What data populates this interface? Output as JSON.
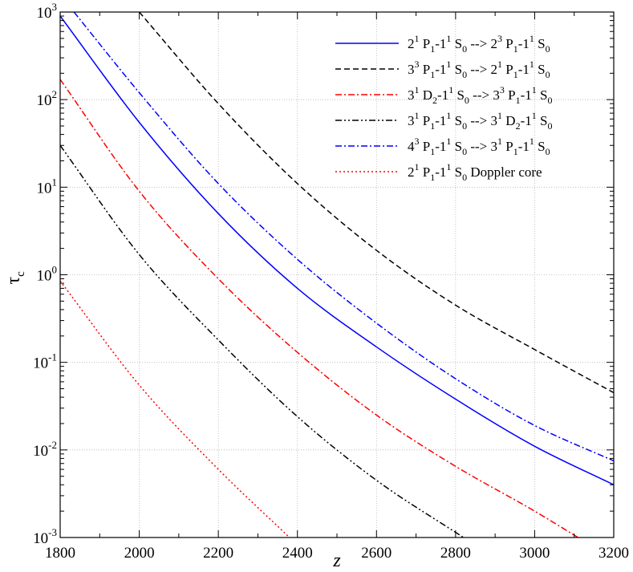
{
  "chart_data": {
    "type": "line",
    "title": "",
    "xlabel": "z",
    "ylabel": "τ_c",
    "xlim": [
      1800,
      3200
    ],
    "ylim": [
      0.001,
      1000
    ],
    "yscale": "log",
    "grid": true,
    "legend_position": "top-right",
    "x_ticks": [
      1800,
      2000,
      2200,
      2400,
      2600,
      2800,
      3000,
      3200
    ],
    "x_tick_labels": [
      "1800",
      "2000",
      "2200",
      "2400",
      "2600",
      "2800",
      "3000",
      "3200"
    ],
    "y_ticks": [
      {
        "value": 1000,
        "mant": "10",
        "exp": "3"
      },
      {
        "value": 100,
        "mant": "10",
        "exp": "2"
      },
      {
        "value": 10,
        "mant": "10",
        "exp": "1"
      },
      {
        "value": 1,
        "mant": "10",
        "exp": "0"
      },
      {
        "value": 0.1,
        "mant": "10",
        "exp": "-1"
      },
      {
        "value": 0.01,
        "mant": "10",
        "exp": "-2"
      },
      {
        "value": 0.001,
        "mant": "10",
        "exp": "-3"
      }
    ],
    "series": [
      {
        "name": "2¹P₁-1¹S₀ --> 2³P₁-1¹S₀",
        "legend_parts": [
          [
            "2",
            "n"
          ],
          [
            "1",
            "sup"
          ],
          [
            " P",
            "n"
          ],
          [
            "1",
            "sub"
          ],
          [
            "-1",
            "n"
          ],
          [
            "1",
            "sup"
          ],
          [
            " S",
            "n"
          ],
          [
            "0",
            "sub"
          ],
          [
            " --> 2",
            "n"
          ],
          [
            "3",
            "sup"
          ],
          [
            " P",
            "n"
          ],
          [
            "1",
            "sub"
          ],
          [
            "-1",
            "n"
          ],
          [
            "1",
            "sup"
          ],
          [
            " S",
            "n"
          ],
          [
            "0",
            "sub"
          ]
        ],
        "color": "#0000ff",
        "dash": "",
        "x": [
          1800,
          2000,
          2200,
          2400,
          2600,
          2800,
          3000,
          3200
        ],
        "y": [
          900,
          55,
          5,
          0.7,
          0.15,
          0.038,
          0.011,
          0.004
        ]
      },
      {
        "name": "3³P₁-1¹S₀ --> 2¹P₁-1¹S₀",
        "legend_parts": [
          [
            "3",
            "n"
          ],
          [
            "3",
            "sup"
          ],
          [
            " P",
            "n"
          ],
          [
            "1",
            "sub"
          ],
          [
            "-1",
            "n"
          ],
          [
            "1",
            "sup"
          ],
          [
            " S",
            "n"
          ],
          [
            "0",
            "sub"
          ],
          [
            " --> 2",
            "n"
          ],
          [
            "1",
            "sup"
          ],
          [
            " P",
            "n"
          ],
          [
            "1",
            "sub"
          ],
          [
            "-1",
            "n"
          ],
          [
            "1",
            "sup"
          ],
          [
            " S",
            "n"
          ],
          [
            "0",
            "sub"
          ]
        ],
        "color": "#000000",
        "dash": "7,4",
        "x": [
          2000,
          2200,
          2400,
          2600,
          2800,
          3000,
          3200
        ],
        "y": [
          1000,
          90,
          11,
          1.9,
          0.45,
          0.14,
          0.045
        ]
      },
      {
        "name": "3¹D₂-1¹S₀ --> 3³P₁-1¹S₀",
        "legend_parts": [
          [
            "3",
            "n"
          ],
          [
            "1",
            "sup"
          ],
          [
            " D",
            "n"
          ],
          [
            "2",
            "sub"
          ],
          [
            "-1",
            "n"
          ],
          [
            "1",
            "sup"
          ],
          [
            " S",
            "n"
          ],
          [
            "0",
            "sub"
          ],
          [
            " --> 3",
            "n"
          ],
          [
            "3",
            "sup"
          ],
          [
            " P",
            "n"
          ],
          [
            "1",
            "sub"
          ],
          [
            "-1",
            "n"
          ],
          [
            "1",
            "sup"
          ],
          [
            " S",
            "n"
          ],
          [
            "0",
            "sub"
          ]
        ],
        "color": "#ff0000",
        "dash": "8,3,2,3",
        "x": [
          1800,
          2000,
          2200,
          2400,
          2600,
          2800,
          3000,
          3110
        ],
        "y": [
          170,
          9,
          0.9,
          0.13,
          0.025,
          0.0065,
          0.002,
          0.001
        ]
      },
      {
        "name": "3¹P₁-1¹S₀ --> 3¹D₂-1¹S₀",
        "legend_parts": [
          [
            "3",
            "n"
          ],
          [
            "1",
            "sup"
          ],
          [
            " P",
            "n"
          ],
          [
            "1",
            "sub"
          ],
          [
            "-1",
            "n"
          ],
          [
            "1",
            "sup"
          ],
          [
            " S",
            "n"
          ],
          [
            "0",
            "sub"
          ],
          [
            " --> 3",
            "n"
          ],
          [
            "1",
            "sup"
          ],
          [
            " D",
            "n"
          ],
          [
            "2",
            "sub"
          ],
          [
            "-1",
            "n"
          ],
          [
            "1",
            "sup"
          ],
          [
            " S",
            "n"
          ],
          [
            "0",
            "sub"
          ]
        ],
        "color": "#000000",
        "dash": "8,3,2,3,2,3",
        "x": [
          1800,
          2000,
          2200,
          2400,
          2600,
          2820
        ],
        "y": [
          30,
          1.7,
          0.18,
          0.024,
          0.0045,
          0.001
        ]
      },
      {
        "name": "4³P₁-1¹S₀ --> 3¹P₁-1¹S₀",
        "legend_parts": [
          [
            "4",
            "n"
          ],
          [
            "3",
            "sup"
          ],
          [
            " P",
            "n"
          ],
          [
            "1",
            "sub"
          ],
          [
            "-1",
            "n"
          ],
          [
            "1",
            "sup"
          ],
          [
            " S",
            "n"
          ],
          [
            "0",
            "sub"
          ],
          [
            " --> 3",
            "n"
          ],
          [
            "1",
            "sup"
          ],
          [
            " P",
            "n"
          ],
          [
            "1",
            "sub"
          ],
          [
            "-1",
            "n"
          ],
          [
            "1",
            "sup"
          ],
          [
            " S",
            "n"
          ],
          [
            "0",
            "sub"
          ]
        ],
        "color": "#0000ff",
        "dash": "8,3,2,3",
        "x": [
          1835,
          2000,
          2200,
          2400,
          2600,
          2800,
          3000,
          3200
        ],
        "y": [
          1000,
          120,
          11,
          1.5,
          0.28,
          0.065,
          0.019,
          0.0075
        ]
      },
      {
        "name": "2¹P₁-1¹S₀ Doppler core",
        "legend_parts": [
          [
            "2",
            "n"
          ],
          [
            "1",
            "sup"
          ],
          [
            " P",
            "n"
          ],
          [
            "1",
            "sub"
          ],
          [
            "-1",
            "n"
          ],
          [
            "1",
            "sup"
          ],
          [
            " S",
            "n"
          ],
          [
            "0",
            "sub"
          ],
          [
            " Doppler core",
            "n"
          ]
        ],
        "color": "#ff0000",
        "dash": "2,3",
        "x": [
          1800,
          2000,
          2200,
          2380
        ],
        "y": [
          0.85,
          0.055,
          0.006,
          0.001
        ]
      }
    ]
  }
}
